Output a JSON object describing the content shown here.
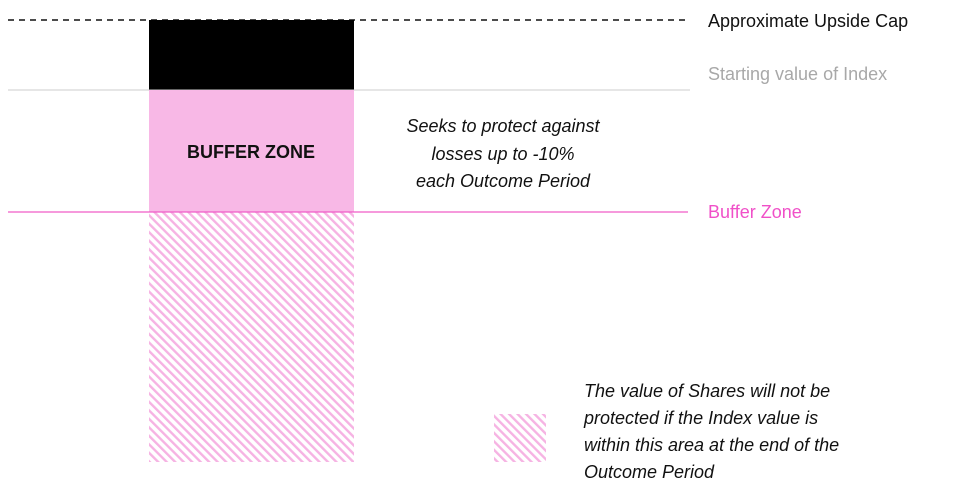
{
  "diagram": {
    "levels": {
      "upside_cap": "Approximate Upside Cap",
      "starting_value": "Starting value of Index",
      "buffer_zone": "Buffer Zone"
    },
    "zone_label": "BUFFER ZONE",
    "zone_note": [
      "Seeks to protect against",
      "losses up to -10%",
      "each Outcome Period"
    ],
    "legend": [
      "The value of Shares will not be",
      "protected if the Index value is",
      "within this area at the end of the",
      "Outcome Period"
    ]
  }
}
